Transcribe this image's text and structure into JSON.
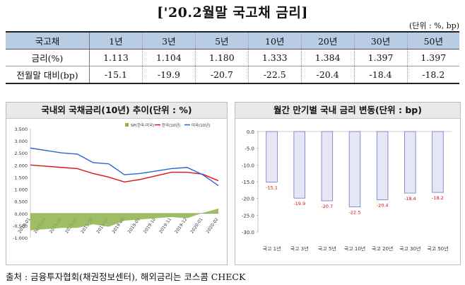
{
  "title": "['20.2월말 국고채 금리]",
  "unit": "(단위 : %, bp)",
  "table": {
    "header": [
      "국고채",
      "1년",
      "3년",
      "5년",
      "10년",
      "20년",
      "30년",
      "50년"
    ],
    "rows": [
      {
        "label": "금리(%)",
        "values": [
          "1.113",
          "1.104",
          "1.180",
          "1.333",
          "1.384",
          "1.397",
          "1.397"
        ]
      },
      {
        "label": "전월말 대비(bp)",
        "values": [
          "-15.1",
          "-19.9",
          "-20.7",
          "-22.5",
          "-20.4",
          "-18.4",
          "-18.2"
        ]
      }
    ]
  },
  "left_chart": {
    "heading": "국내외 국채금리(10년) 추이(단위 : %)",
    "legend": [
      "SP(한국-미국)",
      "한국(10년)",
      "미국(10년)"
    ],
    "colors": {
      "spread": "#8db34a",
      "korea": "#e01010",
      "us": "#2b63d9"
    }
  },
  "right_chart": {
    "heading": "월간 만기별 국내 금리 변동(단위 : bp)",
    "bar_fill": "#e6e6f5",
    "bar_stroke": "#6b77c9"
  },
  "chart_data": [
    {
      "type": "line",
      "title": "국내외 국채금리(10년) 추이(단위 : %)",
      "ylim": [
        -1.0,
        3.5
      ],
      "yticks": [
        "3.500",
        "3.000",
        "2.500",
        "2.000",
        "1.500",
        "1.000",
        "0.500",
        "0.000",
        "-0.500",
        "-1.000"
      ],
      "x": [
        "2019-01",
        "2019-03",
        "2019-04",
        "2019-05",
        "2019-06",
        "2019-07",
        "2019-08",
        "2019-09",
        "2019-10",
        "2019-11",
        "2019-12",
        "2020-01",
        "2020-02"
      ],
      "series": [
        {
          "name": "한국(10년)",
          "values": [
            2.0,
            1.95,
            1.9,
            1.85,
            1.65,
            1.5,
            1.3,
            1.4,
            1.55,
            1.7,
            1.7,
            1.62,
            1.35
          ]
        },
        {
          "name": "미국(10년)",
          "values": [
            2.7,
            2.6,
            2.5,
            2.45,
            2.1,
            2.05,
            1.6,
            1.65,
            1.75,
            1.85,
            1.9,
            1.6,
            1.15
          ]
        },
        {
          "name": "SP(한국-미국)",
          "values": [
            -0.7,
            -0.65,
            -0.6,
            -0.6,
            -0.45,
            -0.55,
            -0.3,
            -0.25,
            -0.2,
            -0.15,
            -0.2,
            0.02,
            0.2
          ]
        }
      ]
    },
    {
      "type": "bar",
      "title": "월간 만기별 국내 금리 변동(단위 : bp)",
      "categories": [
        "국고 1년",
        "국고 3년",
        "국고 5년",
        "국고 10년",
        "국고 20년",
        "국고 30년",
        "국고 50년"
      ],
      "values": [
        -15.1,
        -19.9,
        -20.7,
        -22.5,
        -20.4,
        -18.4,
        -18.2
      ],
      "ylim": [
        -30,
        0
      ],
      "yticks": [
        "0.0",
        "-5.0",
        "-10.0",
        "-15.0",
        "-20.0",
        "-25.0",
        "-30.0"
      ]
    }
  ],
  "footnote": "출처 : 금융투자협회(채권정보센터), 해외금리는 코스콤 CHECK"
}
